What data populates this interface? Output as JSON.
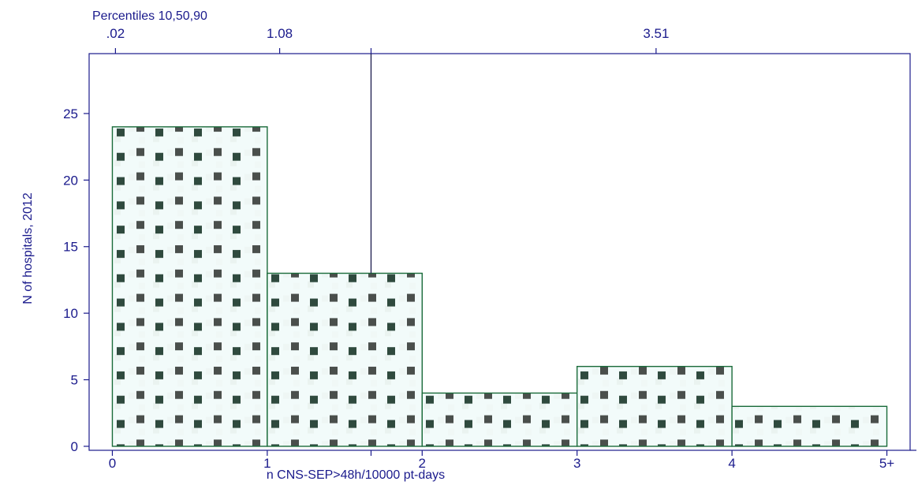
{
  "chart_data": {
    "type": "bar",
    "subtype": "histogram",
    "bins": [
      {
        "from": 0,
        "to": 1,
        "count": 24
      },
      {
        "from": 1,
        "to": 2,
        "count": 13
      },
      {
        "from": 2,
        "to": 3,
        "count": 4
      },
      {
        "from": 3,
        "to": 4,
        "count": 6
      },
      {
        "from": 4,
        "to": 5,
        "count": 3
      }
    ],
    "xlabel": "n CNS-SEP>48h/10000 pt-days",
    "ylabel": "N of hospitals, 2012",
    "x_ticks": [
      {
        "value": 0,
        "label": "0"
      },
      {
        "value": 1,
        "label": "1"
      },
      {
        "value": 2,
        "label": "2"
      },
      {
        "value": 3,
        "label": "3"
      },
      {
        "value": 4,
        "label": "4"
      },
      {
        "value": 5,
        "label": "5+"
      }
    ],
    "y_ticks": [
      0,
      5,
      10,
      15,
      20,
      25
    ],
    "xlim": [
      -0.15,
      5.15
    ],
    "ylim": [
      -0.3,
      29.5
    ],
    "top_axis": {
      "title": "Percentiles 10,50,90",
      "ticks": [
        {
          "value": 0.02,
          "label": ".02"
        },
        {
          "value": 1.08,
          "label": "1.08"
        },
        {
          "value": 3.51,
          "label": "3.51"
        }
      ],
      "mean_tick": 1.67
    },
    "reference_line": {
      "x": 1.67,
      "y_from": 13,
      "y_to": 29.5
    },
    "colors": {
      "axis": "#1a1a8c",
      "bar_edge": "#1a6b3a",
      "bar_fill": "#f2fbfa",
      "dot": "#2a4a3c"
    }
  }
}
